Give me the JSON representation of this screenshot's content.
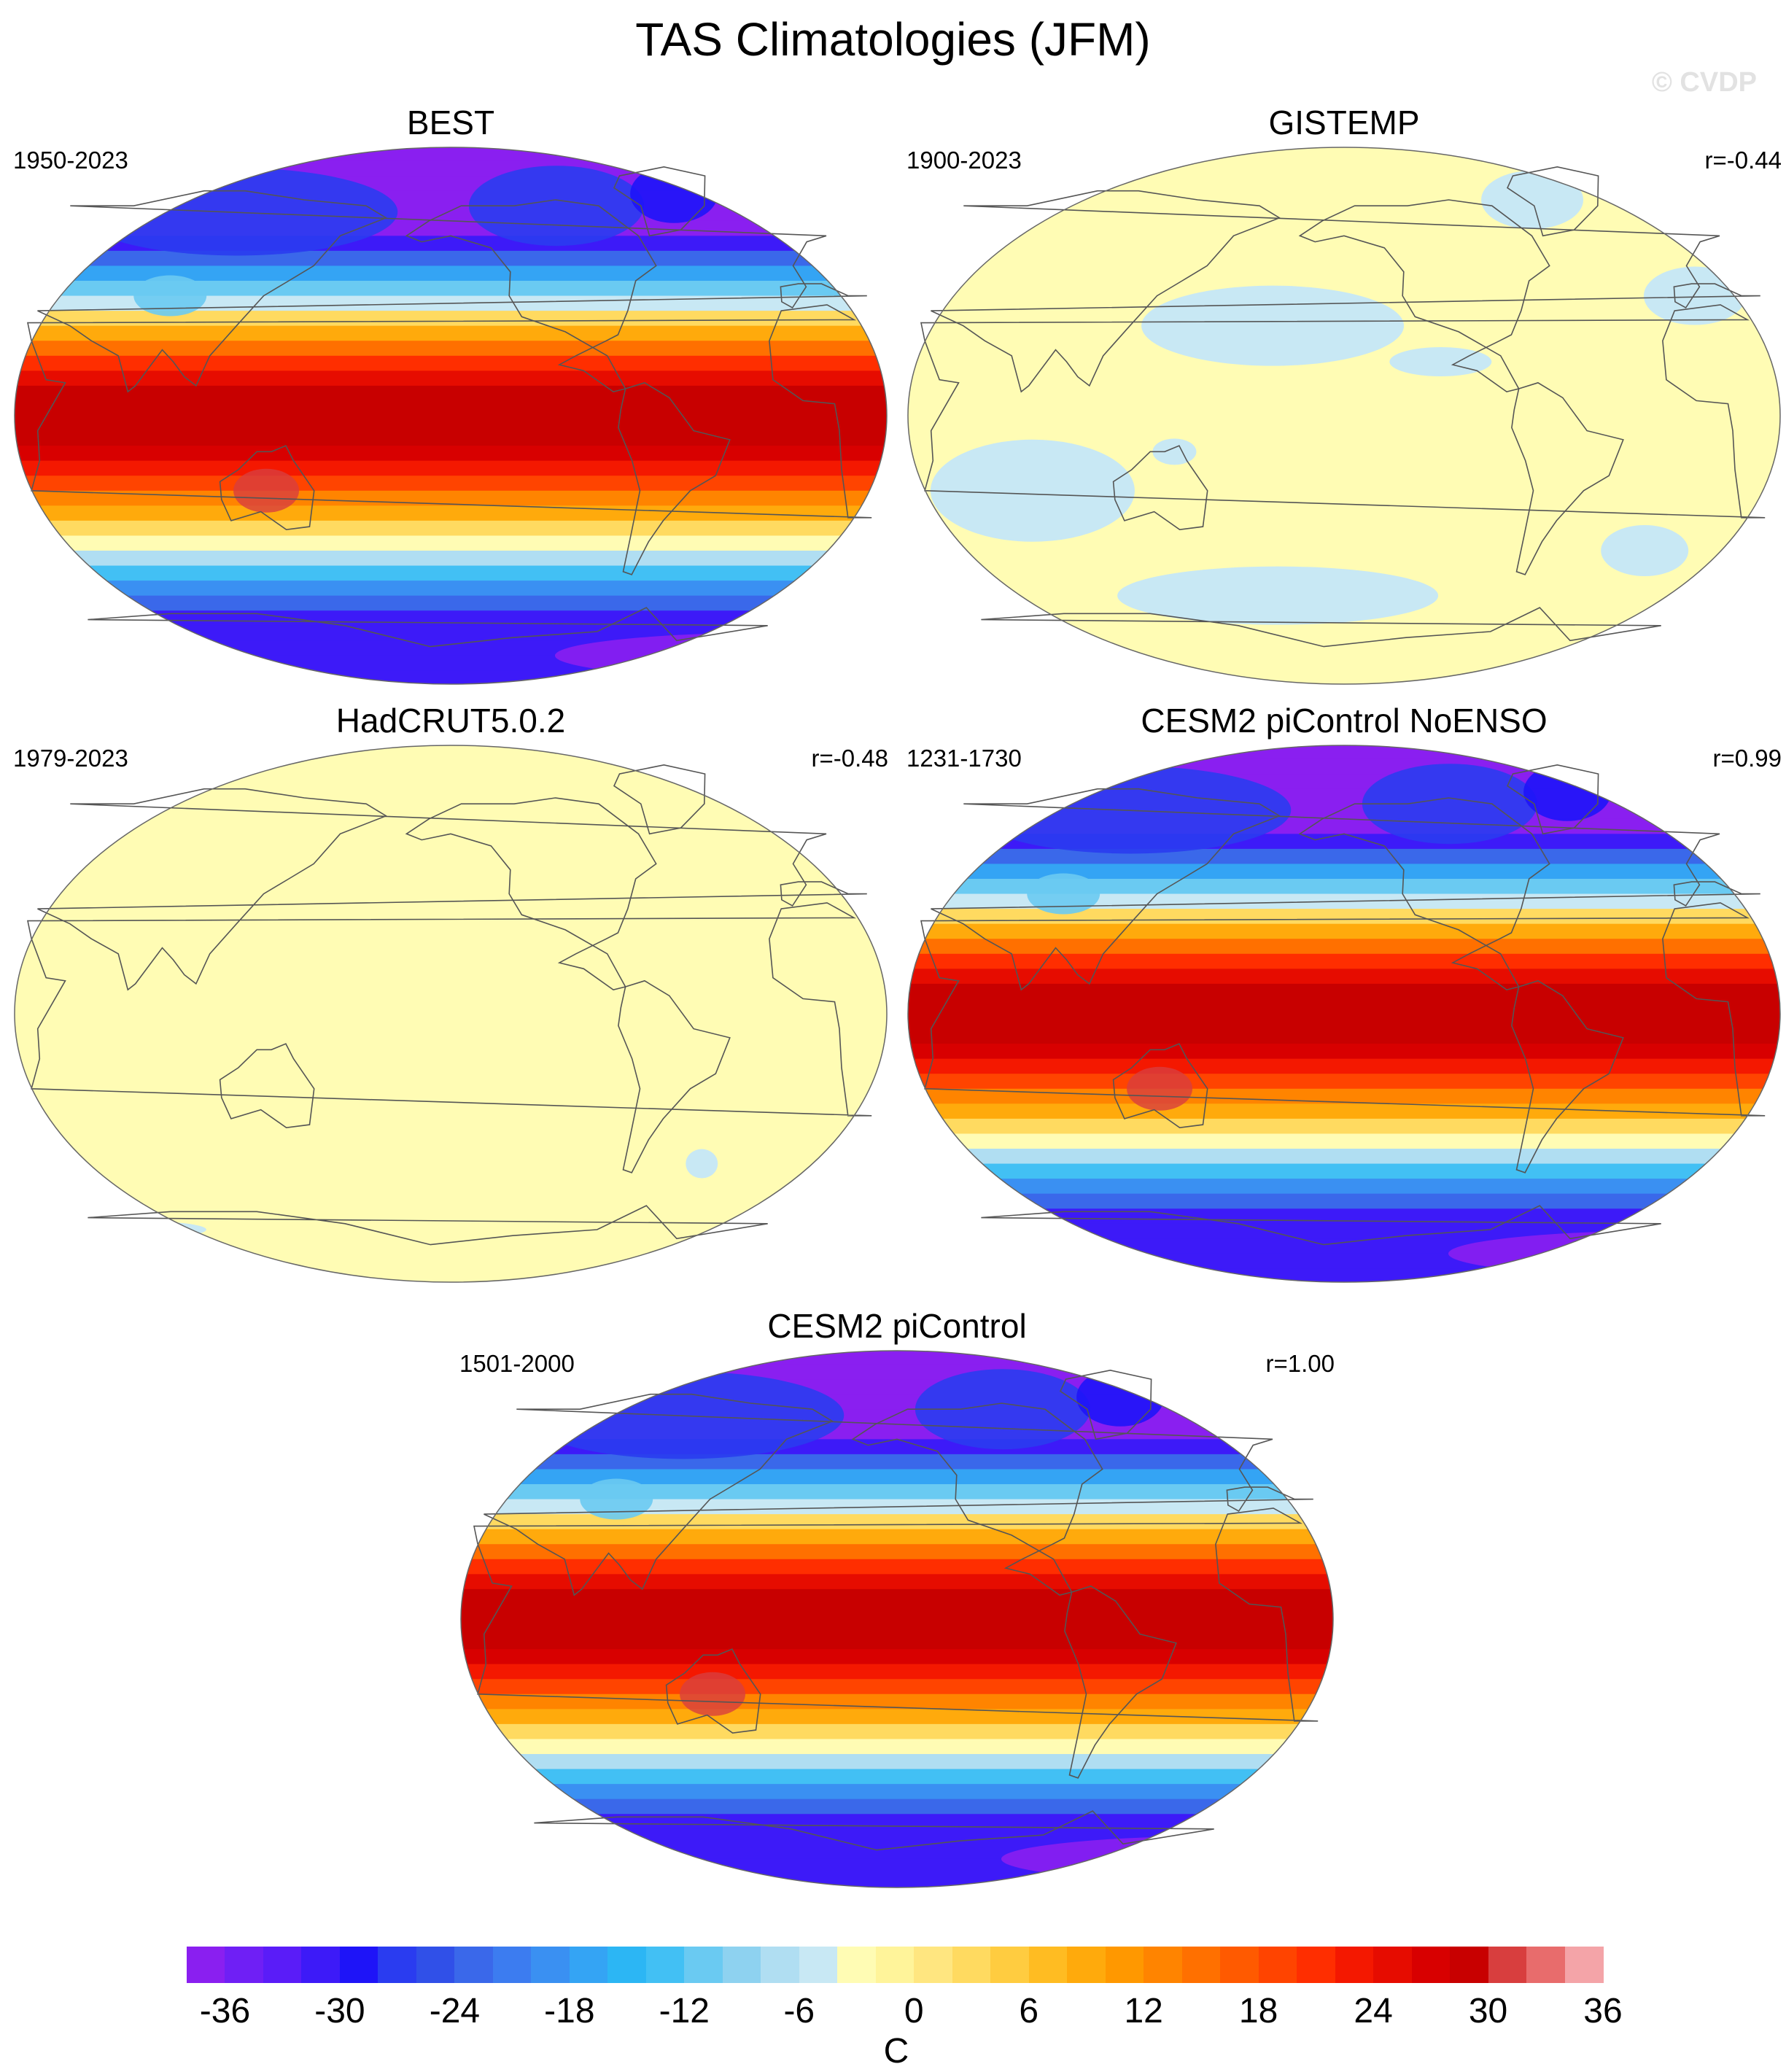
{
  "title": "TAS Climatologies (JFM)",
  "watermark": "© CVDP",
  "panels": [
    {
      "name": "BEST",
      "period": "1950-2023",
      "r": "",
      "field": "full"
    },
    {
      "name": "GISTEMP",
      "period": "1900-2023",
      "r": "r=-0.44",
      "field": "anomaly_patchy"
    },
    {
      "name": "HadCRUT5.0.2",
      "period": "1979-2023",
      "r": "r=-0.48",
      "field": "anomaly_flat"
    },
    {
      "name": "CESM2 piControl NoENSO",
      "period": "1231-1730",
      "r": "r=0.99",
      "field": "full"
    },
    {
      "name": "CESM2 piControl",
      "period": "1501-2000",
      "r": "r=1.00",
      "field": "full"
    }
  ],
  "colorbar": {
    "unit": "C",
    "tick_labels": [
      "-36",
      "-30",
      "-24",
      "-18",
      "-12",
      "-6",
      "0",
      "6",
      "12",
      "18",
      "24",
      "30",
      "36"
    ],
    "tick_values": [
      -36,
      -30,
      -24,
      -18,
      -12,
      -6,
      0,
      6,
      12,
      18,
      24,
      30,
      36
    ],
    "colors": [
      "#8a1ff0",
      "#6f1ff5",
      "#5a1cf8",
      "#3d1af8",
      "#1e14f8",
      "#2a3cf0",
      "#3050e8",
      "#3a68ea",
      "#3c7cf0",
      "#3a90f2",
      "#34a4f4",
      "#2cb6f4",
      "#42c0f4",
      "#6acaf2",
      "#8ed2f0",
      "#b0def2",
      "#c8e8f4",
      "#fffcb4",
      "#fff49a",
      "#ffe680",
      "#ffda60",
      "#ffcc40",
      "#ffbc22",
      "#ffaa0c",
      "#ff9800",
      "#ff8400",
      "#ff7000",
      "#ff5a00",
      "#ff4400",
      "#ff2e00",
      "#f41800",
      "#e60c00",
      "#d80000",
      "#c80000",
      "#d83e3e",
      "#e86c6c",
      "#f4a4a8"
    ]
  }
}
